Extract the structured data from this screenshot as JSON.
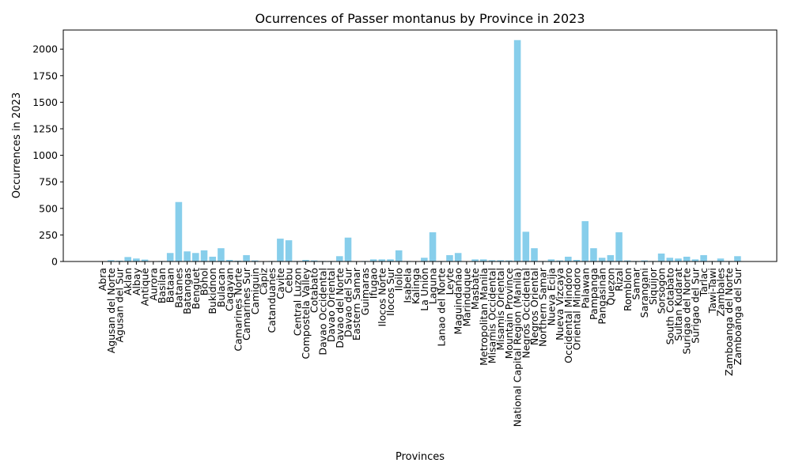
{
  "chart_data": {
    "type": "bar",
    "title": "Ocurrences of Passer montanus by Province in 2023",
    "xlabel": "Provinces",
    "ylabel": "Occurrences in 2023",
    "ylim": [
      0,
      2180
    ],
    "yticks": [
      0,
      250,
      500,
      750,
      1000,
      1250,
      1500,
      1750,
      2000
    ],
    "bar_color": "#87ceeb",
    "grid": false,
    "categories": [
      "Abra",
      "Agusan del Norte",
      "Agusan del Sur",
      "Aklan",
      "Albay",
      "Antique",
      "Aurora",
      "Basilan",
      "Bataan",
      "Batanes",
      "Batangas",
      "Benguet",
      "Bohol",
      "Bukidnon",
      "Bulacan",
      "Cagayan",
      "Camarines Norte",
      "Camarines Sur",
      "Camiguin",
      "Capiz",
      "Catanduanes",
      "Cavite",
      "Cebu",
      "Central Luzon",
      "Compostela Valley",
      "Cotabato",
      "Davao Occidental",
      "Davao Oriental",
      "Davao del Norte",
      "Davao del Sur",
      "Eastern Samar",
      "Guimaras",
      "Ifugao",
      "Ilocos Norte",
      "Ilocos Sur",
      "Iloilo",
      "Isabela",
      "Kalinga",
      "La Union",
      "Laguna",
      "Lanao del Norte",
      "Leyte",
      "Maguindanao",
      "Marinduque",
      "Masbate",
      "Metropolitan Manila",
      "Misamis Occidental",
      "Misamis Oriental",
      "Mountain Province",
      "National Capital Region (Manila)",
      "Negros Occidental",
      "Negros Oriental",
      "Northern Samar",
      "Nueva Ecija",
      "Nueva Vizcaya",
      "Occidental Mindoro",
      "Oriental Mindoro",
      "Palawan",
      "Pampanga",
      "Pangasinan",
      "Quezon",
      "Rizal",
      "Romblon",
      "Samar",
      "Sarangani",
      "Siquijor",
      "Sorsogon",
      "South Cotabato",
      "Sultan Kudarat",
      "Surigao del Norte",
      "Surigao del Sur",
      "Tarlac",
      "Tawi-Tawi",
      "Zambales",
      "Zamboanga del Norte",
      "Zamboanga del Sur"
    ],
    "values": [
      2,
      12,
      8,
      42,
      28,
      18,
      3,
      5,
      80,
      560,
      95,
      80,
      105,
      45,
      125,
      15,
      8,
      60,
      10,
      3,
      5,
      215,
      200,
      5,
      15,
      10,
      5,
      5,
      50,
      225,
      3,
      5,
      20,
      20,
      20,
      105,
      5,
      3,
      35,
      275,
      5,
      60,
      80,
      3,
      20,
      20,
      12,
      12,
      10,
      2085,
      280,
      125,
      5,
      20,
      10,
      45,
      15,
      380,
      125,
      35,
      60,
      275,
      10,
      5,
      10,
      5,
      75,
      35,
      28,
      45,
      20,
      60,
      5,
      28,
      5,
      50
    ]
  }
}
